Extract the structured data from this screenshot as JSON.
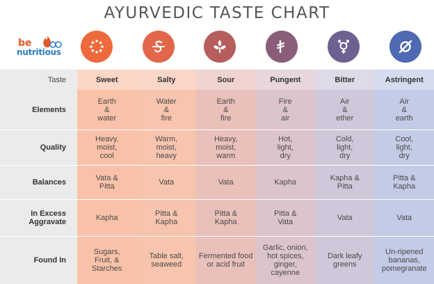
{
  "title": "AYURVEDIC TASTE CHART",
  "logo": {
    "line1": "be",
    "line2": "nutritious"
  },
  "colors": {
    "sweet": "#ee6a3c",
    "salty": "#e2664a",
    "sour": "#b65d5e",
    "pungent": "#8a5e7a",
    "bitter": "#6e6192",
    "astringent": "#4f69b2"
  },
  "icons": [
    "sweet-dots-icon",
    "salty-wave-icon",
    "sour-leaf-icon",
    "pungent-rupee-icon",
    "bitter-gender-icon",
    "astringent-orbit-icon"
  ],
  "header": {
    "label": "Taste",
    "tastes": [
      "Sweet",
      "Salty",
      "Sour",
      "Pungent",
      "Bitter",
      "Astringent"
    ]
  },
  "rows": [
    {
      "label": "Elements",
      "values": [
        [
          "Earth",
          "&",
          "water"
        ],
        [
          "Water",
          "&",
          "fire"
        ],
        [
          "Earth",
          "&",
          "fire"
        ],
        [
          "Fire",
          "&",
          "air"
        ],
        [
          "Air",
          "&",
          "ether"
        ],
        [
          "Air",
          "&",
          "earth"
        ]
      ]
    },
    {
      "label": "Quality",
      "values": [
        [
          "Heavy,",
          "moist,",
          "cool"
        ],
        [
          "Warm,",
          "moist,",
          "heavy"
        ],
        [
          "Heavy,",
          "moist,",
          "warm"
        ],
        [
          "Hot,",
          "light,",
          "dry"
        ],
        [
          "Cold,",
          "light,",
          "dry"
        ],
        [
          "Cool,",
          "light,",
          "dry"
        ]
      ]
    },
    {
      "label": "Balances",
      "values": [
        [
          "Vata &",
          "Pitta"
        ],
        [
          "Vata"
        ],
        [
          "Vata"
        ],
        [
          "Kapha"
        ],
        [
          "Kapha &",
          "Pitta"
        ],
        [
          "Pitta &",
          "Kapha"
        ]
      ]
    },
    {
      "label": [
        "In Excess",
        "Aggravate"
      ],
      "values": [
        [
          "Kapha"
        ],
        [
          "Pitta &",
          "Kapha"
        ],
        [
          "Pitta &",
          "Kapha"
        ],
        [
          "Pitta &",
          "Vata"
        ],
        [
          "Vata"
        ],
        [
          "Vata"
        ]
      ]
    },
    {
      "label": "Found In",
      "values": [
        [
          "Sugars,",
          "Fruit, &",
          "Starches"
        ],
        [
          "Table salt,",
          "seaweed"
        ],
        [
          "Fermented food",
          "or acid fruit"
        ],
        [
          "Garlic, onion,",
          "hot spices,",
          "ginger,",
          "cayenne"
        ],
        [
          "Dark leafy",
          "greens"
        ],
        [
          "Un-ripened",
          "bananas,",
          "pomegranate"
        ]
      ]
    }
  ]
}
